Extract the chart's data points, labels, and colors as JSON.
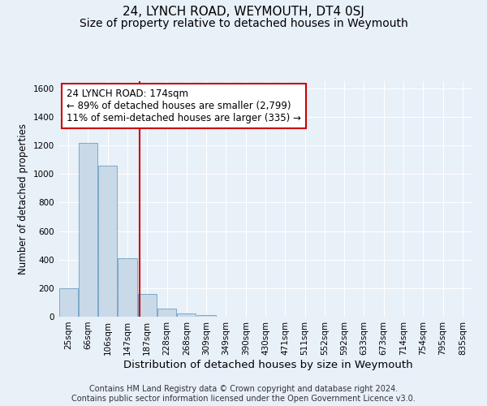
{
  "title": "24, LYNCH ROAD, WEYMOUTH, DT4 0SJ",
  "subtitle": "Size of property relative to detached houses in Weymouth",
  "xlabel": "Distribution of detached houses by size in Weymouth",
  "ylabel": "Number of detached properties",
  "categories": [
    "25sqm",
    "66sqm",
    "106sqm",
    "147sqm",
    "187sqm",
    "228sqm",
    "268sqm",
    "309sqm",
    "349sqm",
    "390sqm",
    "430sqm",
    "471sqm",
    "511sqm",
    "552sqm",
    "592sqm",
    "633sqm",
    "673sqm",
    "714sqm",
    "754sqm",
    "795sqm",
    "835sqm"
  ],
  "bar_heights": [
    200,
    1220,
    1060,
    410,
    160,
    55,
    25,
    13,
    0,
    0,
    0,
    0,
    0,
    0,
    0,
    0,
    0,
    0,
    0,
    0,
    0
  ],
  "bar_color": "#c9d9e8",
  "bar_edge_color": "#7aaaca",
  "vline_x": 3.62,
  "property_label": "24 LYNCH ROAD: 174sqm",
  "annotation_line1": "← 89% of detached houses are smaller (2,799)",
  "annotation_line2": "11% of semi-detached houses are larger (335) →",
  "annotation_box_facecolor": "#ffffff",
  "annotation_box_edgecolor": "#cc0000",
  "vline_color": "#cc0000",
  "ylim": [
    0,
    1650
  ],
  "yticks": [
    0,
    200,
    400,
    600,
    800,
    1000,
    1200,
    1400,
    1600
  ],
  "footnote1": "Contains HM Land Registry data © Crown copyright and database right 2024.",
  "footnote2": "Contains public sector information licensed under the Open Government Licence v3.0.",
  "background_color": "#e8f0f8",
  "plot_bg_color": "#e8f0f8",
  "grid_color": "#ffffff",
  "title_fontsize": 11,
  "subtitle_fontsize": 10,
  "xlabel_fontsize": 9.5,
  "ylabel_fontsize": 8.5,
  "tick_fontsize": 7.5,
  "annotation_fontsize": 8.5,
  "footnote_fontsize": 7
}
